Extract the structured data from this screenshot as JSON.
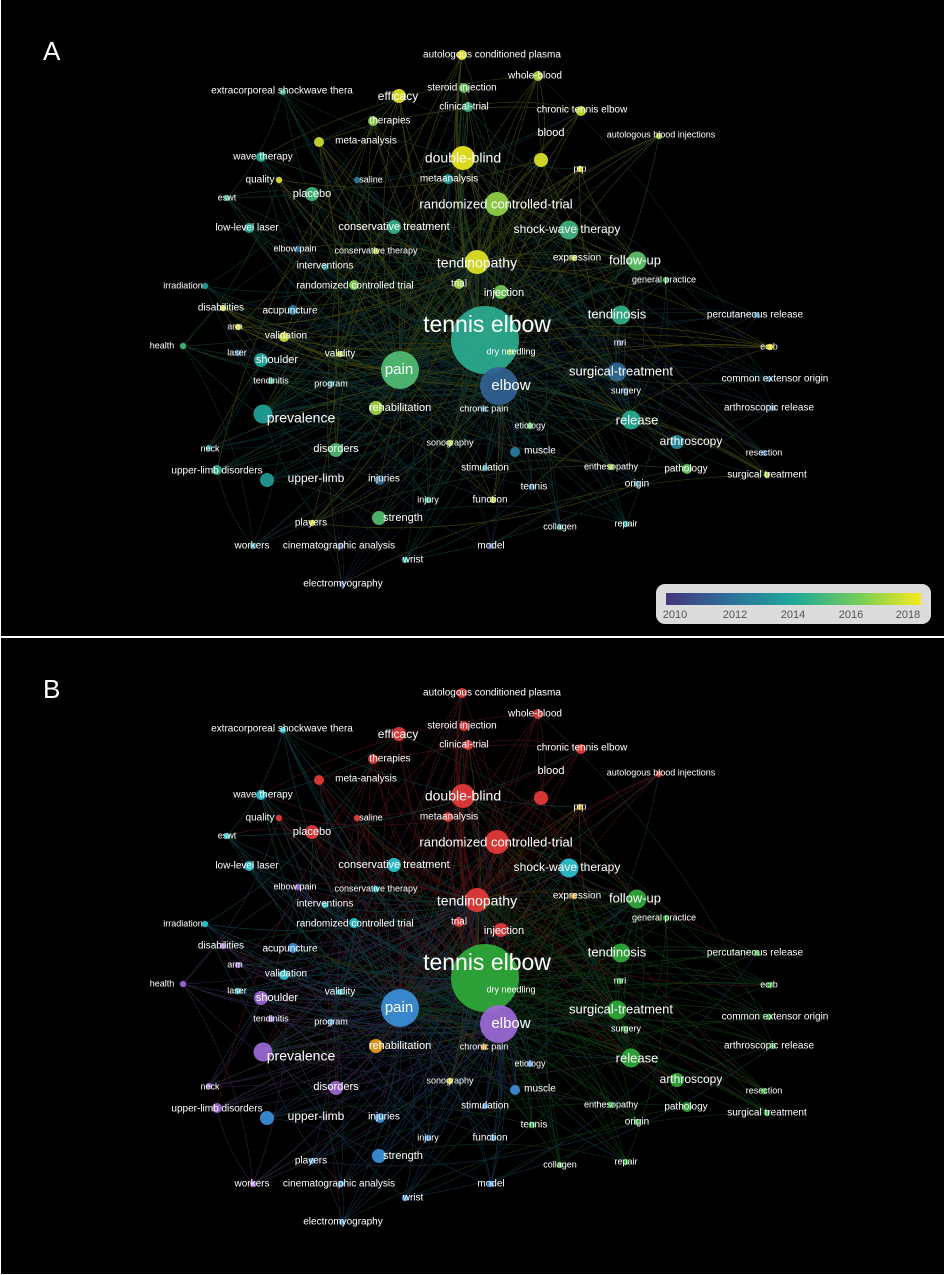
{
  "colors": {
    "background": "#000000",
    "timeline": [
      "#45357e",
      "#2c6f9b",
      "#1fa89a",
      "#71cc5a",
      "#f5ea1e"
    ],
    "clusters": [
      "#e63b3b",
      "#2faa3a",
      "#3c8fd9",
      "#9b6ad6",
      "#2bc3d0",
      "#e8a020",
      "#d6d62a"
    ]
  },
  "panels": [
    {
      "letter": "A",
      "coloring": "average publication year"
    },
    {
      "letter": "B",
      "coloring": "cluster"
    }
  ],
  "legend": {
    "ticks": [
      "2010",
      "2012",
      "2014",
      "2016",
      "2018"
    ]
  },
  "network": {
    "nodes": [
      {
        "label": "tennis elbow",
        "weight": 10,
        "year": 2014.3,
        "cluster": 1
      },
      {
        "label": "elbow",
        "weight": 6,
        "year": 2011.5,
        "cluster": 3
      },
      {
        "label": "pain",
        "weight": 6,
        "year": 2015.2,
        "cluster": 2
      },
      {
        "label": "tendinopathy",
        "weight": 5,
        "year": 2017.7,
        "cluster": 0
      },
      {
        "label": "double-blind",
        "weight": 5,
        "year": 2017.9,
        "cluster": 0
      },
      {
        "label": "randomized controlled-trial",
        "weight": 5,
        "year": 2016.5,
        "cluster": 0
      },
      {
        "label": "prevalence",
        "weight": 4,
        "year": 2013.8,
        "cluster": 3
      },
      {
        "label": "tendinosis",
        "weight": 4,
        "year": 2014.5,
        "cluster": 1
      },
      {
        "label": "follow-up",
        "weight": 4,
        "year": 2015.5,
        "cluster": 1
      },
      {
        "label": "surgical-treatment",
        "weight": 4,
        "year": 2011.8,
        "cluster": 1
      },
      {
        "label": "release",
        "weight": 4,
        "year": 2014.2,
        "cluster": 1
      },
      {
        "label": "shock-wave therapy",
        "weight": 4,
        "year": 2014.8,
        "cluster": 4
      },
      {
        "label": "arthroscopy",
        "weight": 3,
        "year": 2013.0,
        "cluster": 1
      },
      {
        "label": "upper-limb",
        "weight": 3,
        "year": 2013.6,
        "cluster": 2
      },
      {
        "label": "strength",
        "weight": 3,
        "year": 2015.3,
        "cluster": 2
      },
      {
        "label": "efficacy",
        "weight": 3,
        "year": 2017.7,
        "cluster": 0
      },
      {
        "label": "injection",
        "weight": 3,
        "year": 2016.0,
        "cluster": 0
      },
      {
        "label": "rehabilitation",
        "weight": 3,
        "year": 2016.8,
        "cluster": 5
      },
      {
        "label": "placebo",
        "weight": 3,
        "year": 2014.9,
        "cluster": 0
      },
      {
        "label": "shoulder",
        "weight": 3,
        "year": 2014.0,
        "cluster": 3
      },
      {
        "label": "conservative treatment",
        "weight": 3,
        "year": 2014.5,
        "cluster": 4
      },
      {
        "label": "disorders",
        "weight": 3,
        "year": 2015.2,
        "cluster": 3
      },
      {
        "label": "blood",
        "weight": 3,
        "year": 2017.6,
        "cluster": 0
      },
      {
        "label": "acupuncture",
        "weight": 2,
        "year": 2012.5,
        "cluster": 2
      },
      {
        "label": "injuries",
        "weight": 2,
        "year": 2011.8,
        "cluster": 2
      },
      {
        "label": "muscle",
        "weight": 2,
        "year": 2012.5,
        "cluster": 2
      },
      {
        "label": "upper-limb disorders",
        "weight": 2,
        "year": 2014.4,
        "cluster": 3
      },
      {
        "label": "validation",
        "weight": 2,
        "year": 2017.3,
        "cluster": 4
      },
      {
        "label": "autologous conditioned plasma",
        "weight": 2,
        "year": 2018.0,
        "cluster": 0
      },
      {
        "label": "chronic tennis elbow",
        "weight": 2,
        "year": 2017.4,
        "cluster": 0
      },
      {
        "label": "whole-blood",
        "weight": 2,
        "year": 2017.0,
        "cluster": 0
      },
      {
        "label": "steroid injection",
        "weight": 2,
        "year": 2015.7,
        "cluster": 0
      },
      {
        "label": "clinical-trial",
        "weight": 2,
        "year": 2014.6,
        "cluster": 0
      },
      {
        "label": "therapies",
        "weight": 2,
        "year": 2016.5,
        "cluster": 0
      },
      {
        "label": "meta-analysis",
        "weight": 2,
        "year": 2017.4,
        "cluster": 0
      },
      {
        "label": "metaanalysis",
        "weight": 2,
        "year": 2013.8,
        "cluster": 0
      },
      {
        "label": "extracorporeal shockwave thera",
        "weight": 1,
        "year": 2014.4,
        "cluster": 4
      },
      {
        "label": "autologous blood injections",
        "weight": 1,
        "year": 2016.8,
        "cluster": 0
      },
      {
        "label": "prp",
        "weight": 1,
        "year": 2017.8,
        "cluster": 5
      },
      {
        "label": "wave therapy",
        "weight": 2,
        "year": 2014.2,
        "cluster": 4
      },
      {
        "label": "quality",
        "weight": 1,
        "year": 2017.6,
        "cluster": 0
      },
      {
        "label": "saline",
        "weight": 1,
        "year": 2012.5,
        "cluster": 0
      },
      {
        "label": "eswt",
        "weight": 1,
        "year": 2014.8,
        "cluster": 4
      },
      {
        "label": "low-level laser",
        "weight": 2,
        "year": 2014.2,
        "cluster": 4
      },
      {
        "label": "elbow pain",
        "weight": 1,
        "year": 2012.2,
        "cluster": 3
      },
      {
        "label": "conservative therapy",
        "weight": 1,
        "year": 2017.0,
        "cluster": 4
      },
      {
        "label": "interventions",
        "weight": 1,
        "year": 2013.5,
        "cluster": 4
      },
      {
        "label": "expression",
        "weight": 1,
        "year": 2017.1,
        "cluster": 5
      },
      {
        "label": "general practice",
        "weight": 1,
        "year": 2015.4,
        "cluster": 1
      },
      {
        "label": "irradiation",
        "weight": 1,
        "year": 2013.6,
        "cluster": 4
      },
      {
        "label": "randomized controlled trial",
        "weight": 2,
        "year": 2016.4,
        "cluster": 4
      },
      {
        "label": "trial",
        "weight": 2,
        "year": 2016.8,
        "cluster": 0
      },
      {
        "label": "disabilities",
        "weight": 1,
        "year": 2017.5,
        "cluster": 3
      },
      {
        "label": "percutaneous release",
        "weight": 1,
        "year": 2012.3,
        "cluster": 1
      },
      {
        "label": "arm",
        "weight": 1,
        "year": 2017.8,
        "cluster": 3
      },
      {
        "label": "health",
        "weight": 1,
        "year": 2014.9,
        "cluster": 3
      },
      {
        "label": "laser",
        "weight": 1,
        "year": 2012.0,
        "cluster": 4
      },
      {
        "label": "validity",
        "weight": 1,
        "year": 2017.2,
        "cluster": 4
      },
      {
        "label": "dry needling",
        "weight": 1,
        "year": 2016.2,
        "cluster": 1
      },
      {
        "label": "ecrb",
        "weight": 1,
        "year": 2018.0,
        "cluster": 1
      },
      {
        "label": "mri",
        "weight": 1,
        "year": 2011.0,
        "cluster": 1
      },
      {
        "label": "common extensor origin",
        "weight": 1,
        "year": 2012.0,
        "cluster": 1
      },
      {
        "label": "tendinitis",
        "weight": 1,
        "year": 2014.6,
        "cluster": 3
      },
      {
        "label": "program",
        "weight": 1,
        "year": 2013.0,
        "cluster": 2
      },
      {
        "label": "surgery",
        "weight": 1,
        "year": 2011.6,
        "cluster": 1
      },
      {
        "label": "chronic pain",
        "weight": 1,
        "year": 2012.4,
        "cluster": 5
      },
      {
        "label": "arthroscopic release",
        "weight": 1,
        "year": 2011.8,
        "cluster": 1
      },
      {
        "label": "etiology",
        "weight": 1,
        "year": 2015.6,
        "cluster": 2
      },
      {
        "label": "neck",
        "weight": 1,
        "year": 2013.3,
        "cluster": 3
      },
      {
        "label": "sonography",
        "weight": 1,
        "year": 2017.0,
        "cluster": 6
      },
      {
        "label": "resection",
        "weight": 1,
        "year": 2011.9,
        "cluster": 1
      },
      {
        "label": "stimulation",
        "weight": 1,
        "year": 2013.2,
        "cluster": 2
      },
      {
        "label": "enthesopathy",
        "weight": 1,
        "year": 2016.7,
        "cluster": 1
      },
      {
        "label": "pathology",
        "weight": 2,
        "year": 2015.8,
        "cluster": 1
      },
      {
        "label": "surgical treatment",
        "weight": 1,
        "year": 2016.9,
        "cluster": 1
      },
      {
        "label": "origin",
        "weight": 1,
        "year": 2012.6,
        "cluster": 1
      },
      {
        "label": "tennis",
        "weight": 1,
        "year": 2012.4,
        "cluster": 1
      },
      {
        "label": "injury",
        "weight": 1,
        "year": 2014.7,
        "cluster": 2
      },
      {
        "label": "function",
        "weight": 1,
        "year": 2017.3,
        "cluster": 2
      },
      {
        "label": "players",
        "weight": 1,
        "year": 2017.6,
        "cluster": 2
      },
      {
        "label": "collagen",
        "weight": 1,
        "year": 2013.3,
        "cluster": 1
      },
      {
        "label": "repair",
        "weight": 1,
        "year": 2013.8,
        "cluster": 1
      },
      {
        "label": "workers",
        "weight": 1,
        "year": 2013.0,
        "cluster": 3
      },
      {
        "label": "cinematographic analysis",
        "weight": 1,
        "year": 2011.2,
        "cluster": 2
      },
      {
        "label": "model",
        "weight": 1,
        "year": 2011.0,
        "cluster": 2
      },
      {
        "label": "wrist",
        "weight": 1,
        "year": 2014.0,
        "cluster": 2
      },
      {
        "label": "electromyography",
        "weight": 1,
        "year": 2011.2,
        "cluster": 2
      }
    ]
  }
}
